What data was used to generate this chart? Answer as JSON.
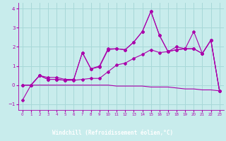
{
  "xlabel": "Windchill (Refroidissement éolien,°C)",
  "xlim": [
    -0.5,
    23.5
  ],
  "ylim": [
    -1.3,
    4.3
  ],
  "xticks": [
    0,
    1,
    2,
    3,
    4,
    5,
    6,
    7,
    8,
    9,
    10,
    11,
    12,
    13,
    14,
    15,
    16,
    17,
    18,
    19,
    20,
    21,
    22,
    23
  ],
  "yticks": [
    -1,
    0,
    1,
    2,
    3,
    4
  ],
  "background_color": "#c8ecec",
  "grid_color": "#a8d8d8",
  "line_color": "#aa00aa",
  "xlabel_bg": "#8060a0",
  "line1_x": [
    0,
    1,
    2,
    3,
    4,
    5,
    6,
    7,
    8,
    9,
    10,
    11,
    12,
    13,
    14,
    15,
    16,
    17,
    18,
    19,
    20,
    21,
    22,
    23
  ],
  "line1_y": [
    -0.8,
    0.0,
    0.5,
    0.4,
    0.4,
    0.3,
    0.3,
    1.7,
    0.85,
    1.0,
    1.9,
    1.9,
    1.85,
    2.25,
    2.8,
    3.85,
    2.6,
    1.75,
    2.0,
    1.9,
    2.8,
    1.65,
    2.35,
    -0.3
  ],
  "line2_x": [
    0,
    1,
    2,
    3,
    4,
    5,
    6,
    7,
    8,
    9,
    10,
    11,
    12,
    13,
    14,
    15,
    16,
    17,
    18,
    19,
    20,
    21,
    22,
    23
  ],
  "line2_y": [
    0.0,
    0.0,
    0.5,
    0.3,
    0.3,
    0.25,
    0.25,
    0.3,
    0.35,
    0.35,
    0.7,
    1.05,
    1.15,
    1.4,
    1.6,
    1.85,
    1.7,
    1.75,
    1.85,
    1.9,
    1.9,
    1.65,
    2.35,
    -0.3
  ],
  "line3_x": [
    0,
    1,
    2,
    3,
    4,
    5,
    6,
    7,
    8,
    9,
    10,
    11,
    12,
    13,
    14,
    15,
    16,
    17,
    18,
    19,
    20,
    21,
    22,
    23
  ],
  "line3_y": [
    0.0,
    0.0,
    0.5,
    0.3,
    0.3,
    0.25,
    0.3,
    1.7,
    0.85,
    0.95,
    1.85,
    1.9,
    1.85,
    2.25,
    2.8,
    3.85,
    2.6,
    1.75,
    1.85,
    1.9,
    1.9,
    1.65,
    2.35,
    -0.3
  ],
  "line4_x": [
    0,
    1,
    2,
    3,
    4,
    5,
    6,
    7,
    8,
    9,
    10,
    11,
    12,
    13,
    14,
    15,
    16,
    17,
    18,
    19,
    20,
    21,
    22,
    23
  ],
  "line4_y": [
    0.0,
    0.0,
    0.0,
    0.0,
    0.0,
    0.0,
    0.0,
    0.0,
    0.0,
    0.0,
    0.0,
    -0.05,
    -0.05,
    -0.05,
    -0.05,
    -0.1,
    -0.1,
    -0.1,
    -0.15,
    -0.2,
    -0.2,
    -0.25,
    -0.25,
    -0.3
  ]
}
